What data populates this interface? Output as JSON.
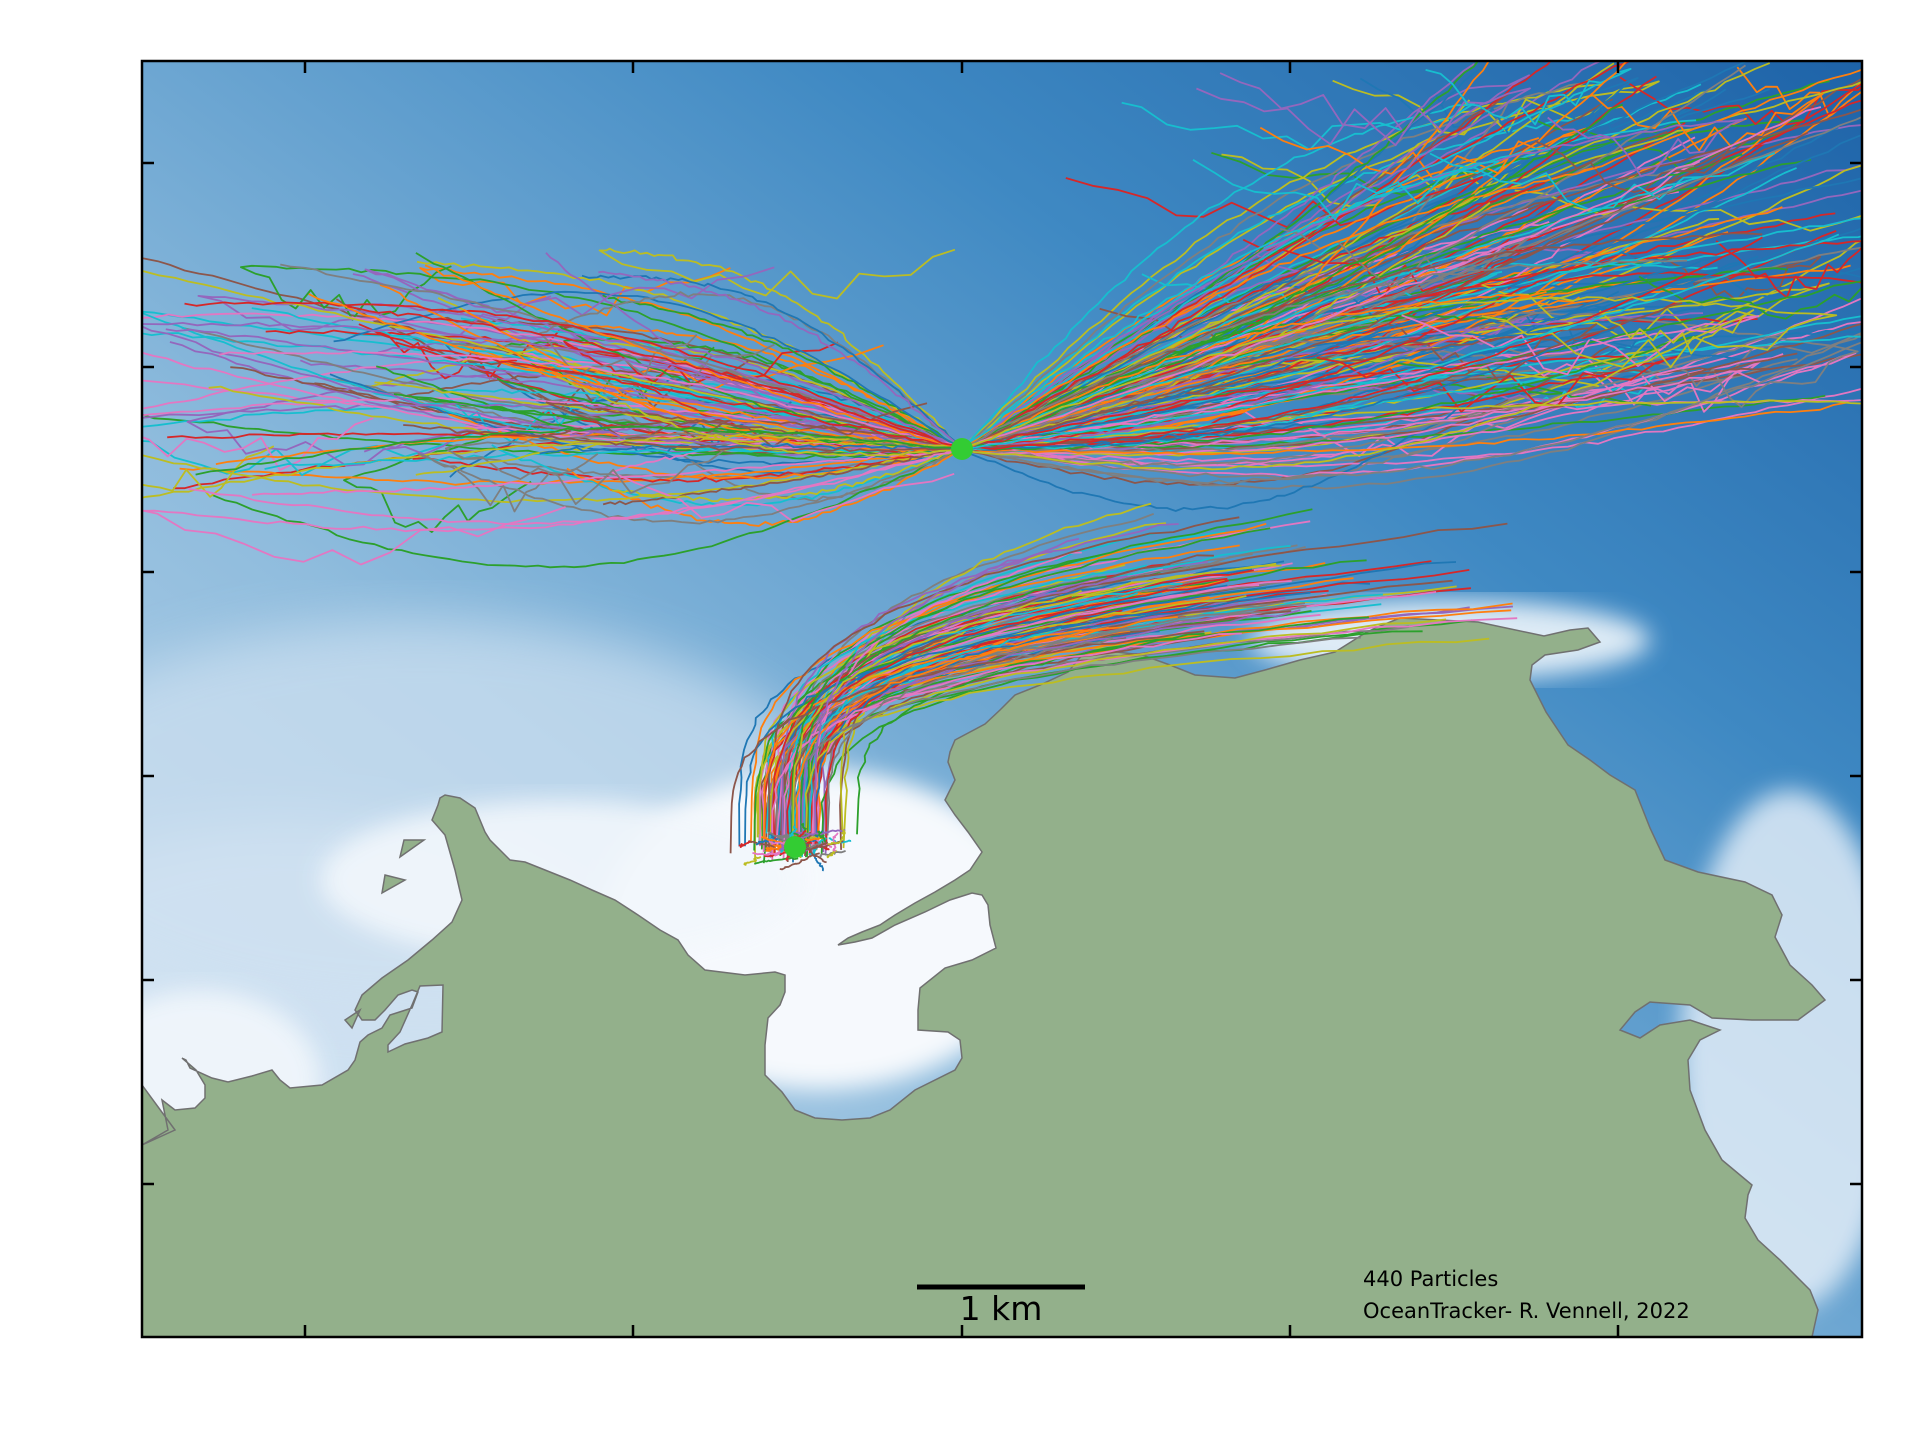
{
  "figure": {
    "particle_count_text": "440 Particles",
    "credit_text": "OceanTracker- R. Vennell, 2022",
    "scale_bar_label": "1 km"
  },
  "map": {
    "type": "particle-track-map",
    "land_color": "#93b08b",
    "land_edge_color": "#707070",
    "deep_water_color": "#1e63a8",
    "shallow_water_color": "#f4f8fd",
    "release_point_color": "#33cc33",
    "release_points": [
      {
        "name": "offshore release"
      },
      {
        "name": "harbour release"
      }
    ],
    "track_colors": [
      "#1f77b4",
      "#ff7f0e",
      "#2ca02c",
      "#d62728",
      "#9467bd",
      "#8c564b",
      "#e377c2",
      "#7f7f7f",
      "#bcbd22",
      "#17becf"
    ],
    "track_groups": [
      {
        "name": "offshore plume",
        "count": 300
      },
      {
        "name": "harbour plume",
        "count": 140
      }
    ],
    "x_ticks": 5,
    "y_ticks": 6,
    "tick_labels_visible": false
  }
}
